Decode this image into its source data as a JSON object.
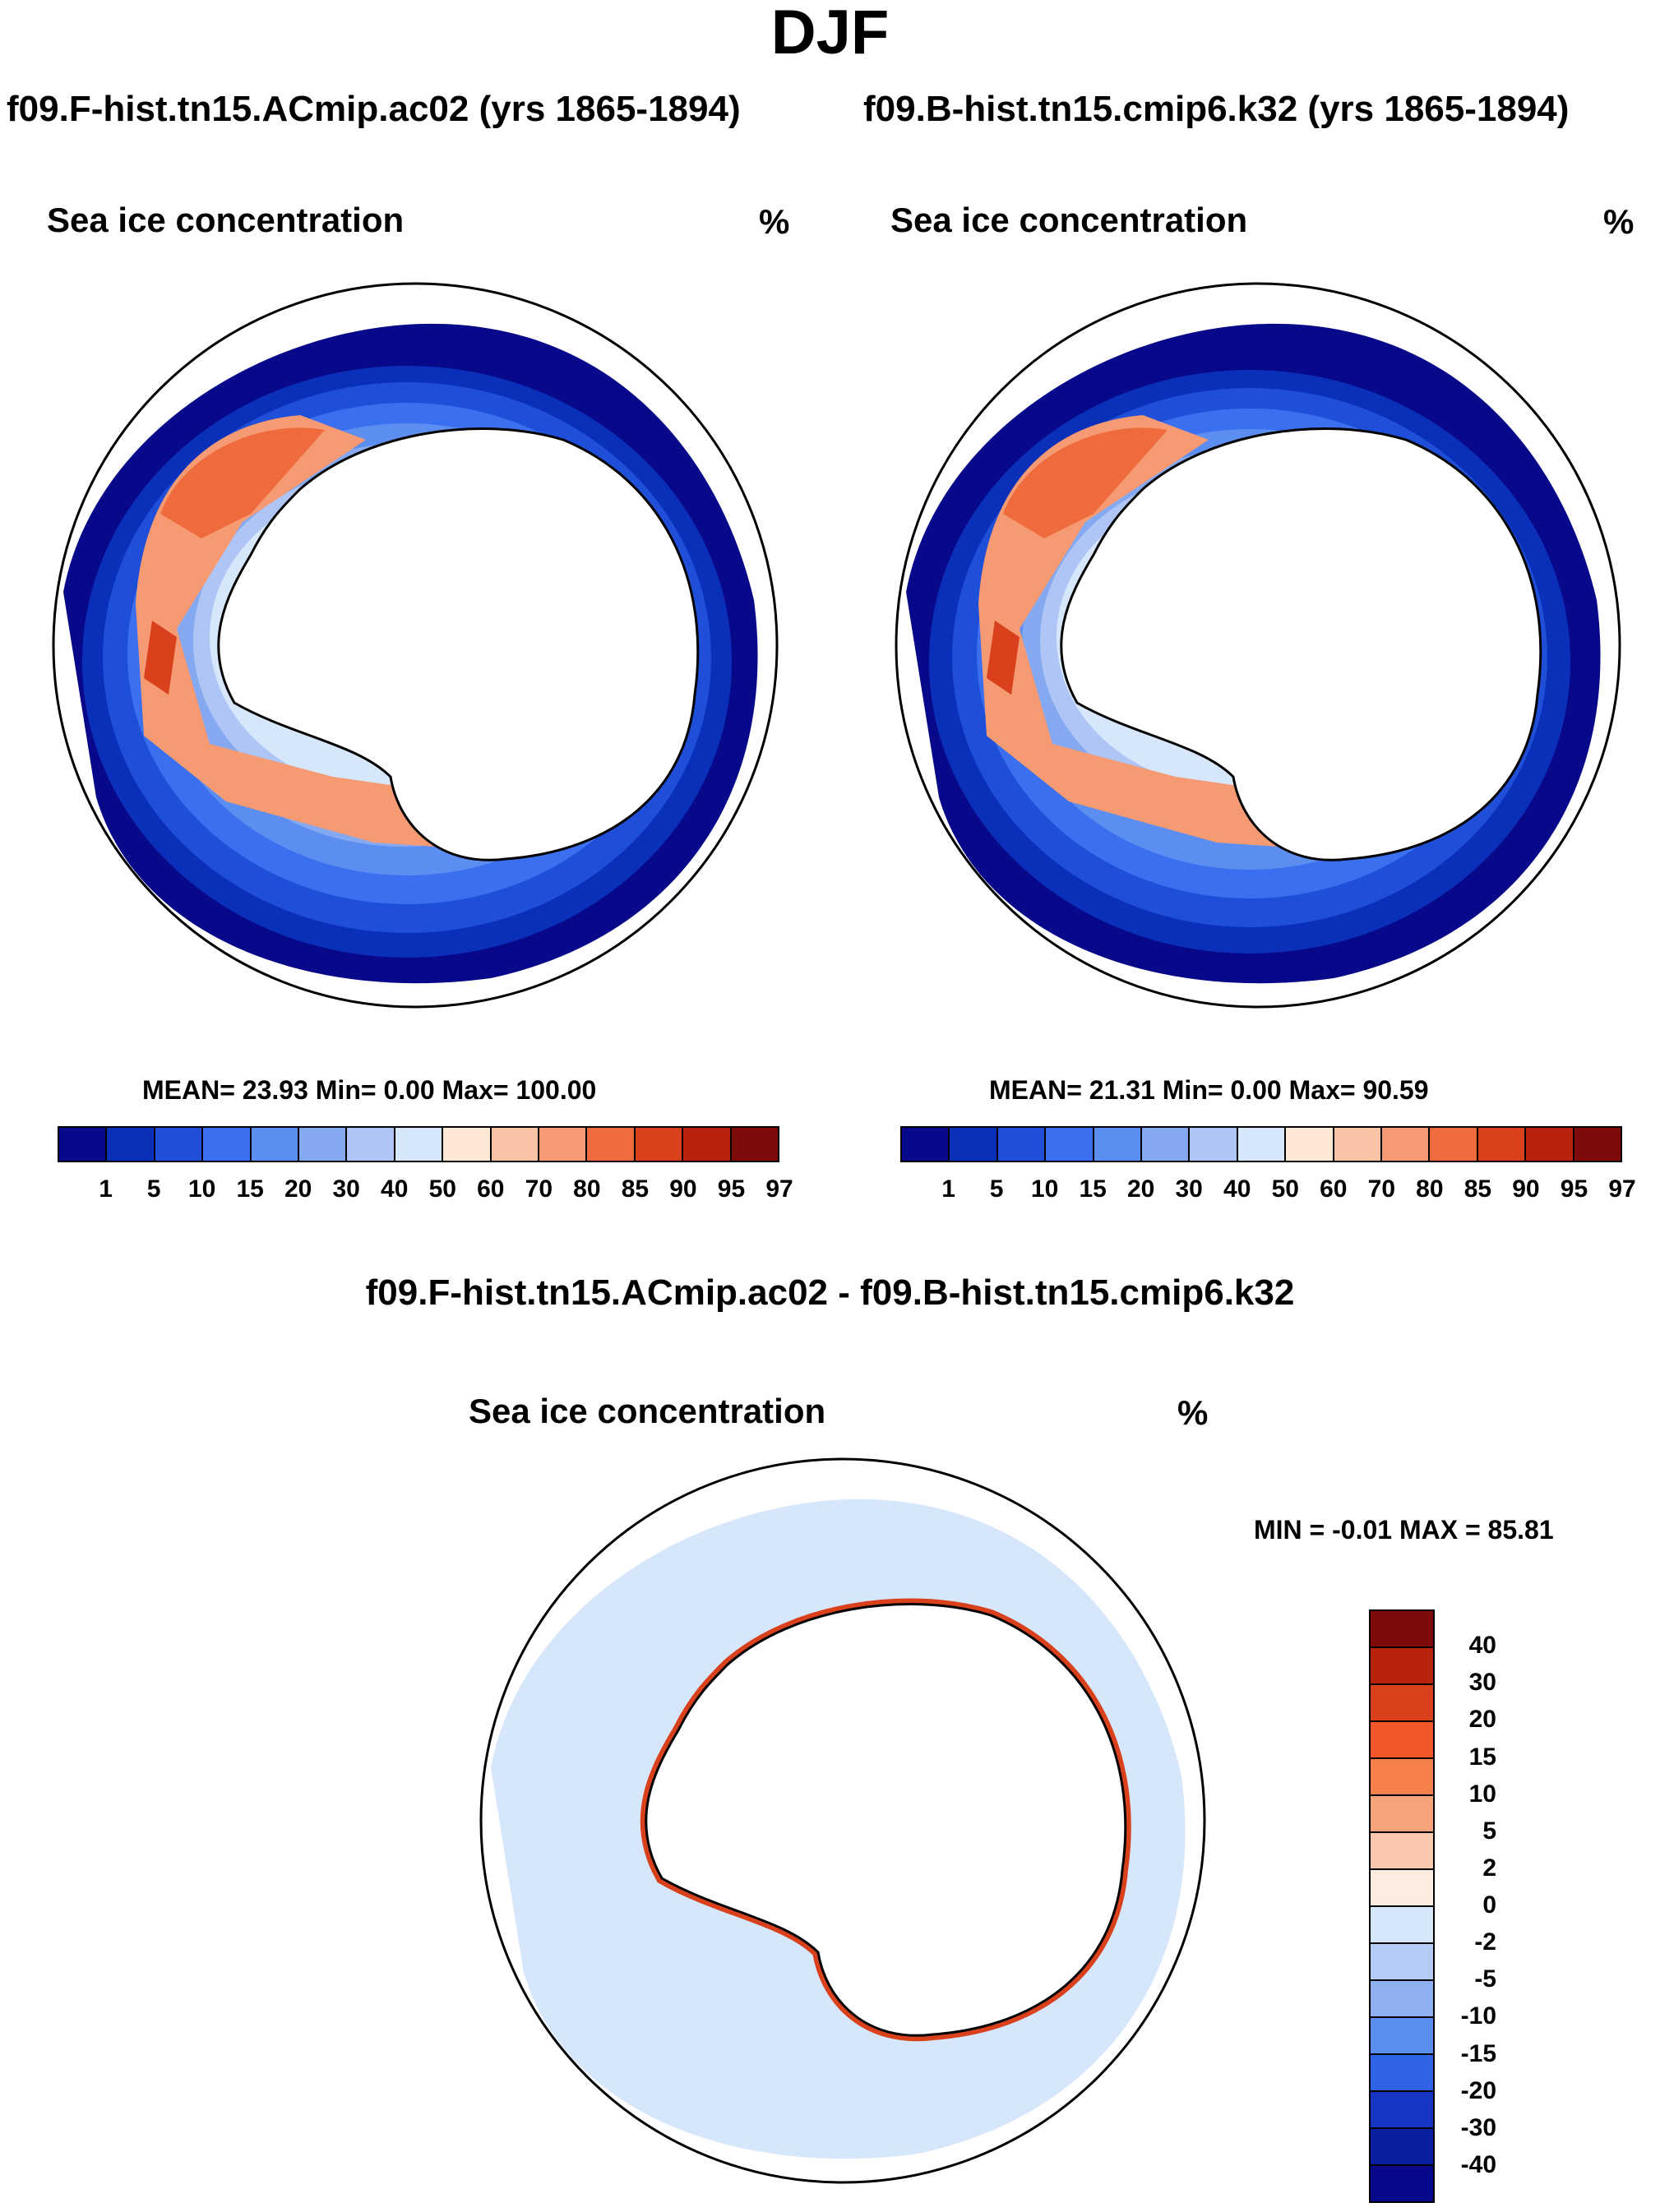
{
  "season": "DJF",
  "case_left": "f09.F-hist.tn15.ACmip.ac02 (yrs 1865-1894)",
  "case_right": "f09.B-hist.tn15.cmip6.k32 (yrs 1865-1894)",
  "diff_title": "f09.F-hist.tn15.ACmip.ac02 - f09.B-hist.tn15.cmip6.k32",
  "variable": "Sea ice concentration",
  "units": "%",
  "panels": [
    {
      "name": "left",
      "stats": "MEAN=  23.93  Min=   0.00  Max= 100.00",
      "mean": 23.93,
      "min": 0.0,
      "max": 100.0
    },
    {
      "name": "right",
      "stats": "MEAN=  21.31  Min=   0.00  Max=  90.59",
      "mean": 21.31,
      "min": 0.0,
      "max": 90.59
    },
    {
      "name": "difference",
      "stats": "MIN =  -0.01 MAX =  85.81",
      "min": -0.01,
      "max": 85.81
    }
  ],
  "colorbar_main": {
    "labels": [
      "1",
      "5",
      "10",
      "15",
      "20",
      "30",
      "40",
      "50",
      "60",
      "70",
      "80",
      "85",
      "90",
      "95",
      "97"
    ],
    "colors": [
      "#08088a",
      "#0a2fb8",
      "#1f4fd8",
      "#3a70f0",
      "#5c8ef2",
      "#85a9f0",
      "#aec5f5",
      "#d6e6fb",
      "#fde8d6",
      "#f9c3a6",
      "#f59a72",
      "#ef6a3c",
      "#d9401c",
      "#b8230d",
      "#7f0a0a"
    ]
  },
  "colorbar_diff": {
    "labels": [
      "40",
      "30",
      "20",
      "15",
      "10",
      "5",
      "2",
      "0",
      "-2",
      "-5",
      "-10",
      "-15",
      "-20",
      "-30",
      "-40"
    ],
    "colors": [
      "#7f0a0a",
      "#b8230d",
      "#d9401c",
      "#f0582a",
      "#f5804c",
      "#f7a37a",
      "#fac9ad",
      "#fdece0",
      "#d6e6fb",
      "#b5cdf6",
      "#8fb1f2",
      "#5c8ef2",
      "#2f63e6",
      "#1535c2",
      "#0a1ea0",
      "#08088a"
    ]
  }
}
